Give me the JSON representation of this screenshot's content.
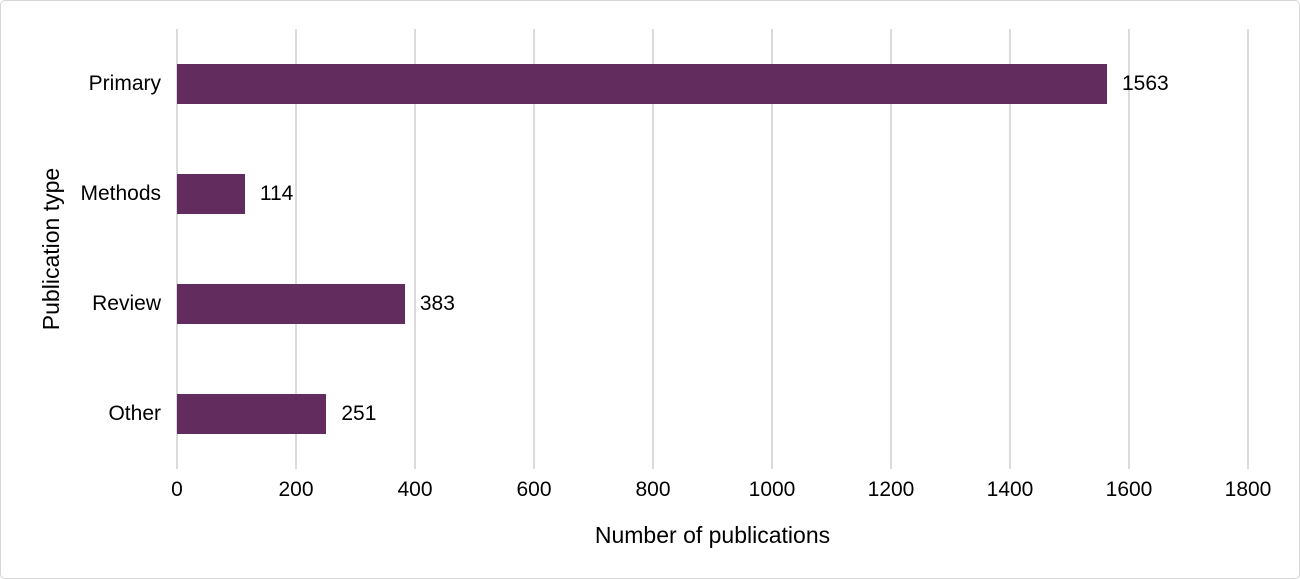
{
  "chart_data": {
    "type": "bar",
    "orientation": "horizontal",
    "title": "",
    "categories": [
      "Primary",
      "Methods",
      "Review",
      "Other"
    ],
    "values": [
      1563,
      114,
      383,
      251
    ],
    "data_labels": [
      "1563",
      "114",
      "383",
      "251"
    ],
    "xlabel": "Number of publications",
    "ylabel": "Publication type",
    "xlim": [
      0,
      1800
    ],
    "xticks": [
      0,
      200,
      400,
      600,
      800,
      1000,
      1200,
      1400,
      1600,
      1800
    ],
    "xtick_labels": [
      "0",
      "200",
      "400",
      "600",
      "800",
      "1000",
      "1200",
      "1400",
      "1600",
      "1800"
    ],
    "grid": "vertical-gridlines-on",
    "legend": "none",
    "colors": {
      "bar": "#622c5e",
      "gridline": "#dbdbdb",
      "text": "#000000",
      "background": "#ffffff",
      "frame_border": "#d6d6d6"
    }
  }
}
